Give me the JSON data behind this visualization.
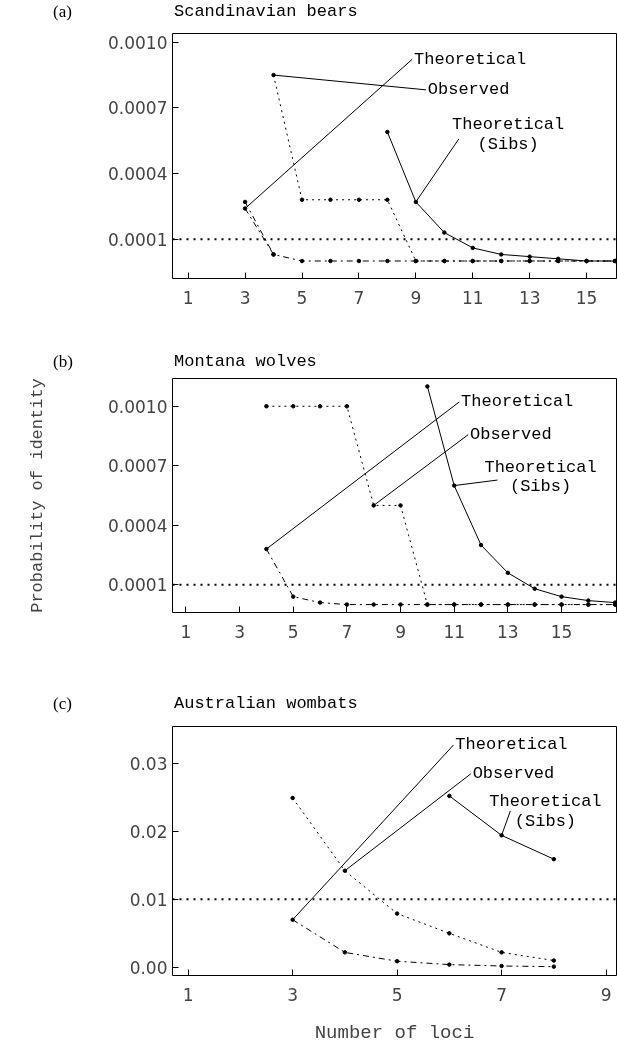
{
  "chart_data": [
    {
      "type": "line",
      "title": "Scandinavian bears",
      "annotations": [
        "(a)"
      ],
      "marker": "circle",
      "grid": false,
      "xlim": [
        0.45,
        16.05
      ],
      "xticks": [
        1,
        3,
        5,
        7,
        9,
        11,
        13,
        15
      ],
      "ylim": [
        -8e-05,
        0.00104
      ],
      "yticks": [
        {
          "value": 0.0001,
          "label": "0.0001"
        },
        {
          "value": 0.0004,
          "label": "0.0004"
        },
        {
          "value": 0.0007,
          "label": "0.0007"
        },
        {
          "value": 0.001,
          "label": "0.0010"
        }
      ],
      "ref_lines": [
        {
          "axis": "y",
          "value": 0.0001,
          "line_style": "dotted",
          "color": "#000000"
        }
      ],
      "series": [
        {
          "name": "Theoretical",
          "color": "#000000",
          "line_style": "dashed",
          "x": [
            3,
            4,
            5,
            6,
            7,
            8,
            9,
            10,
            11,
            12,
            13,
            14,
            15,
            16
          ],
          "values": [
            0.00024,
            3e-05,
            0,
            0,
            0,
            0,
            0,
            0,
            0,
            0,
            0,
            0,
            0,
            0
          ]
        },
        {
          "color": "#000000",
          "line_style": "dashed",
          "x": [
            3,
            4
          ],
          "values": [
            0.00027,
            3e-05
          ]
        },
        {
          "name": "Observed",
          "color": "#000000",
          "line_style": "dotted",
          "x": [
            4,
            5,
            6,
            7,
            8,
            9,
            10,
            11,
            12,
            13,
            14,
            15,
            16
          ],
          "values": [
            0.00085,
            0.00028,
            0.00028,
            0.00028,
            0.00028,
            0,
            0,
            0,
            0,
            0,
            0,
            0,
            0
          ]
        },
        {
          "name": "Theoretical (Sibs)",
          "color": "#000000",
          "line_style": "solid",
          "x": [
            8,
            9,
            10,
            11,
            12,
            13,
            14,
            15,
            16
          ],
          "values": [
            0.00059,
            0.00027,
            0.00013,
            6e-05,
            3e-05,
            2e-05,
            1e-05,
            0,
            0
          ]
        }
      ]
    },
    {
      "type": "line",
      "title": "Montana wolves",
      "ylabel": "Probability of identity",
      "annotations": [
        "(b)"
      ],
      "marker": "circle",
      "grid": false,
      "xlim": [
        0.5,
        17.05
      ],
      "xticks": [
        1,
        3,
        5,
        7,
        9,
        11,
        13,
        15
      ],
      "ylim": [
        -4e-05,
        0.00114
      ],
      "yticks": [
        {
          "value": 0.0001,
          "label": "0.0001"
        },
        {
          "value": 0.0004,
          "label": "0.0004"
        },
        {
          "value": 0.0007,
          "label": "0.0007"
        },
        {
          "value": 0.001,
          "label": "0.0010"
        }
      ],
      "ref_lines": [
        {
          "axis": "y",
          "value": 0.0001,
          "line_style": "dotted",
          "color": "#000000"
        }
      ],
      "series": [
        {
          "name": "Theoretical",
          "color": "#000000",
          "line_style": "dashed",
          "x": [
            4,
            5,
            6,
            7,
            8,
            9,
            10,
            11,
            12,
            13,
            14,
            15,
            16,
            17
          ],
          "values": [
            0.00028,
            4e-05,
            1e-05,
            0,
            0,
            0,
            0,
            0,
            0,
            0,
            0,
            0,
            0,
            0
          ]
        },
        {
          "name": "Observed",
          "color": "#000000",
          "line_style": "dotted",
          "x": [
            4,
            5,
            6,
            7,
            8,
            9,
            10,
            11,
            12,
            13,
            14,
            15,
            16,
            17
          ],
          "values": [
            0.001,
            0.001,
            0.001,
            0.001,
            0.0005,
            0.0005,
            0,
            0,
            0,
            0,
            0,
            0,
            0,
            0
          ]
        },
        {
          "name": "Theoretical (Sibs)",
          "color": "#000000",
          "line_style": "solid",
          "x": [
            10,
            11,
            12,
            13,
            14,
            15,
            16,
            17
          ],
          "values": [
            0.0011,
            0.0006,
            0.0003,
            0.00016,
            8e-05,
            4e-05,
            2e-05,
            1e-05
          ]
        }
      ]
    },
    {
      "type": "line",
      "title": "Australian wombats",
      "xlabel": "Number of loci",
      "annotations": [
        "(c)"
      ],
      "marker": "circle",
      "grid": false,
      "xlim": [
        0.7,
        9.2
      ],
      "xticks": [
        1,
        3,
        5,
        7,
        9
      ],
      "ylim": [
        -0.0012,
        0.0354
      ],
      "yticks": [
        {
          "value": 0,
          "label": "0.00"
        },
        {
          "value": 0.01,
          "label": "0.01"
        },
        {
          "value": 0.02,
          "label": "0.02"
        },
        {
          "value": 0.03,
          "label": "0.03"
        }
      ],
      "ref_lines": [
        {
          "axis": "y",
          "value": 0.01,
          "line_style": "dotted",
          "color": "#000000"
        }
      ],
      "series": [
        {
          "name": "Theoretical",
          "color": "#000000",
          "line_style": "dashed",
          "x": [
            3,
            4,
            5,
            6,
            7,
            8
          ],
          "values": [
            0.007,
            0.0022,
            0.0009,
            0.0004,
            0.0002,
            0.0001
          ]
        },
        {
          "name": "Observed",
          "color": "#000000",
          "line_style": "dotted",
          "x": [
            3,
            4,
            5,
            6,
            7,
            8
          ],
          "values": [
            0.0249,
            0.0142,
            0.0079,
            0.005,
            0.0022,
            0.001
          ]
        },
        {
          "name": "Theoretical (Sibs)",
          "color": "#000000",
          "line_style": "solid",
          "x": [
            6,
            7,
            8
          ],
          "values": [
            0.0252,
            0.0194,
            0.0159
          ]
        }
      ]
    }
  ]
}
